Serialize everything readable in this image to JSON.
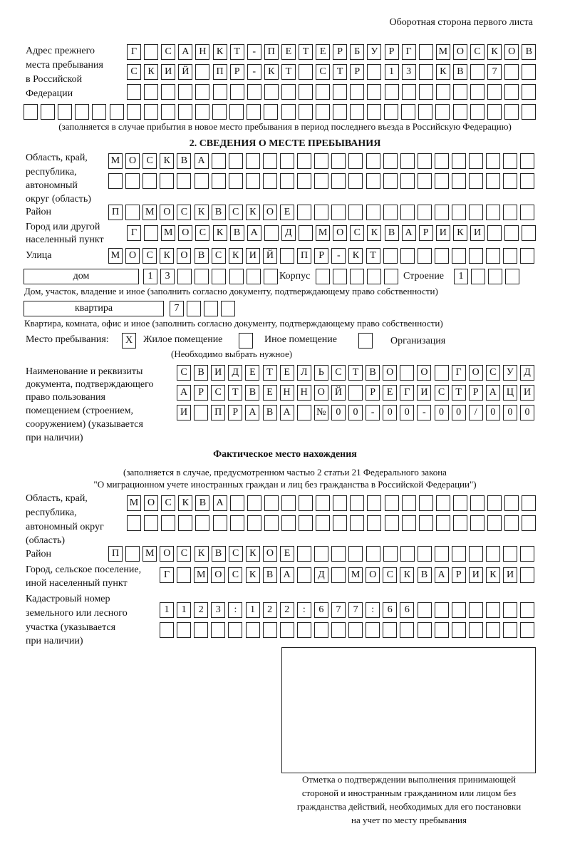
{
  "header": {
    "page_side": "Оборотная сторона первого листа"
  },
  "previous_address": {
    "label": [
      "Адрес прежнего",
      "места пребывания",
      "в Российской",
      "Федерации"
    ],
    "rows": [
      [
        "Г",
        "",
        "С",
        "А",
        "Н",
        "К",
        "Т",
        "-",
        "П",
        "Е",
        "Т",
        "Е",
        "Р",
        "Б",
        "У",
        "Р",
        "Г",
        "",
        "М",
        "О",
        "С",
        "К",
        "О",
        "В"
      ],
      [
        "С",
        "К",
        "И",
        "Й",
        "",
        "П",
        "Р",
        "-",
        "К",
        "Т",
        "",
        "С",
        "Т",
        "Р",
        "",
        "1",
        "3",
        "",
        "К",
        "В",
        "",
        "7",
        "",
        ""
      ],
      [
        "",
        "",
        "",
        "",
        "",
        "",
        "",
        "",
        "",
        "",
        "",
        "",
        "",
        "",
        "",
        "",
        "",
        "",
        "",
        "",
        "",
        "",
        "",
        ""
      ],
      [
        "",
        "",
        "",
        "",
        "",
        "",
        "",
        "",
        "",
        "",
        "",
        "",
        "",
        "",
        "",
        "",
        "",
        "",
        "",
        "",
        "",
        "",
        "",
        "",
        "",
        "",
        "",
        "",
        "",
        ""
      ]
    ],
    "note": "(заполняется в случае прибытия в новое место пребывания в период последнего въезда в Российскую Федерацию)"
  },
  "section2": {
    "title": "2. СВЕДЕНИЯ О МЕСТЕ ПРЕБЫВАНИЯ",
    "region_label": [
      "Область, край,",
      "республика,",
      "автономный",
      "округ (область)"
    ],
    "region_rows": [
      [
        "М",
        "О",
        "С",
        "К",
        "В",
        "А",
        "",
        "",
        "",
        "",
        "",
        "",
        "",
        "",
        "",
        "",
        "",
        "",
        "",
        "",
        "",
        "",
        "",
        "",
        ""
      ],
      [
        "",
        "",
        "",
        "",
        "",
        "",
        "",
        "",
        "",
        "",
        "",
        "",
        "",
        "",
        "",
        "",
        "",
        "",
        "",
        "",
        "",
        "",
        "",
        "",
        ""
      ]
    ],
    "district_label": "Район",
    "district_row": [
      "П",
      "",
      "М",
      "О",
      "С",
      "К",
      "В",
      "С",
      "К",
      "О",
      "Е",
      "",
      "",
      "",
      "",
      "",
      "",
      "",
      "",
      "",
      "",
      "",
      "",
      "",
      ""
    ],
    "city_label": [
      "Город или другой",
      "населенный пункт"
    ],
    "city_row": [
      "Г",
      "",
      "М",
      "О",
      "С",
      "К",
      "В",
      "А",
      "",
      "Д",
      "",
      "М",
      "О",
      "С",
      "К",
      "В",
      "А",
      "Р",
      "И",
      "К",
      "И",
      "",
      "",
      ""
    ],
    "street_label": "Улица",
    "street_row": [
      "М",
      "О",
      "С",
      "К",
      "О",
      "В",
      "С",
      "К",
      "И",
      "Й",
      "",
      "П",
      "Р",
      "-",
      "К",
      "Т",
      "",
      "",
      "",
      "",
      "",
      "",
      "",
      "",
      ""
    ],
    "house_type": "дом",
    "house_row": [
      "1",
      "3",
      "",
      "",
      "",
      "",
      "",
      ""
    ],
    "building_label": "Корпус",
    "building_row": [
      "",
      "",
      "",
      "",
      ""
    ],
    "structure_label": "Строение",
    "structure_row": [
      "1",
      "",
      "",
      ""
    ],
    "house_note": "Дом, участок, владение и иное (заполнить согласно документу, подтверждающему право собственности)",
    "apartment_type": "квартира",
    "apartment_row": [
      "7",
      "",
      "",
      ""
    ],
    "apartment_note": "Квартира, комната, офис и иное (заполнить согласно документу, подтверждающему право собственности)",
    "stay_place_label": "Место пребывания:",
    "stay_options": [
      {
        "label": "Жилое помещение",
        "mark": "Х"
      },
      {
        "label": "Иное помещение",
        "mark": ""
      },
      {
        "label": "Организация",
        "mark": ""
      }
    ],
    "stay_note": "(Необходимо выбрать нужное)",
    "document_label": [
      "Наименование и реквизиты",
      "документа, подтверждающего",
      "право пользования",
      "помещением (строением,",
      "сооружением) (указывается",
      "при наличии)"
    ],
    "document_rows": [
      [
        "С",
        "В",
        "И",
        "Д",
        "Е",
        "Т",
        "Е",
        "Л",
        "Ь",
        "С",
        "Т",
        "В",
        "О",
        "",
        "О",
        "",
        "Г",
        "О",
        "С",
        "У",
        "Д"
      ],
      [
        "А",
        "Р",
        "С",
        "Т",
        "В",
        "Е",
        "Н",
        "Н",
        "О",
        "Й",
        "",
        "Р",
        "Е",
        "Г",
        "И",
        "С",
        "Т",
        "Р",
        "А",
        "Ц",
        "И"
      ],
      [
        "И",
        "",
        "П",
        "Р",
        "А",
        "В",
        "А",
        "",
        "№",
        "0",
        "0",
        "-",
        "0",
        "0",
        "-",
        "0",
        "0",
        "/",
        "0",
        "0",
        "0"
      ]
    ]
  },
  "actual_location": {
    "title": "Фактическое место нахождения",
    "note1": "(заполняется в случае, предусмотренном частью 2 статьи 21 Федерального закона",
    "note2": "\"О миграционном учете иностранных граждан и лиц без гражданства в Российской Федерации\")",
    "region_label": [
      "Область, край,",
      "республика,",
      "автономный округ",
      "(область)"
    ],
    "region_rows": [
      [
        "М",
        "О",
        "С",
        "К",
        "В",
        "А",
        "",
        "",
        "",
        "",
        "",
        "",
        "",
        "",
        "",
        "",
        "",
        "",
        "",
        "",
        "",
        "",
        "",
        ""
      ],
      [
        "",
        "",
        "",
        "",
        "",
        "",
        "",
        "",
        "",
        "",
        "",
        "",
        "",
        "",
        "",
        "",
        "",
        "",
        "",
        "",
        "",
        "",
        "",
        ""
      ]
    ],
    "district_label": "Район",
    "district_row": [
      "П",
      "",
      "М",
      "О",
      "С",
      "К",
      "В",
      "С",
      "К",
      "О",
      "Е",
      "",
      "",
      "",
      "",
      "",
      "",
      "",
      "",
      "",
      "",
      "",
      "",
      "",
      ""
    ],
    "city_label": [
      "Город, сельское поселение,",
      "иной населенный пункт"
    ],
    "city_row": [
      "Г",
      "",
      "М",
      "О",
      "С",
      "К",
      "В",
      "А",
      "",
      "Д",
      "",
      "М",
      "О",
      "С",
      "К",
      "В",
      "А",
      "Р",
      "И",
      "К",
      "И",
      ""
    ],
    "cadastral_label": [
      "Кадастровый номер",
      "земельного или лесного",
      "участка (указывается",
      "при наличии)"
    ],
    "cadastral_rows": [
      [
        "1",
        "1",
        "2",
        "3",
        ":",
        "1",
        "2",
        "2",
        ":",
        "6",
        "7",
        "7",
        ":",
        "6",
        "6",
        "",
        "",
        "",
        "",
        "",
        "",
        ""
      ],
      [
        "",
        "",
        "",
        "",
        "",
        "",
        "",
        "",
        "",
        "",
        "",
        "",
        "",
        "",
        "",
        "",
        "",
        "",
        "",
        "",
        "",
        ""
      ]
    ]
  },
  "confirmation": {
    "caption": [
      "Отметка о подтверждении выполнения принимающей",
      "стороной и иностранным гражданином или лицом без",
      "гражданства действий, необходимых для его постановки",
      "на учет по месту пребывания"
    ]
  }
}
